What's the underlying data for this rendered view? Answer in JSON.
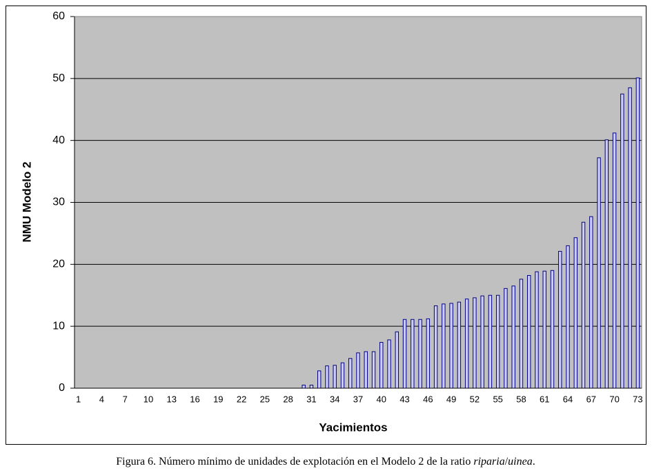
{
  "chart_data": {
    "type": "bar",
    "x_label": "Yacimientos",
    "y_label": "NMU Modelo 2",
    "categories": [
      "1",
      null,
      null,
      "4",
      null,
      null,
      "7",
      null,
      null,
      "10",
      null,
      null,
      "13",
      null,
      null,
      "16",
      null,
      null,
      "19",
      null,
      null,
      "22",
      null,
      null,
      "25",
      null,
      null,
      "28",
      null,
      null,
      "31",
      null,
      null,
      "34",
      null,
      null,
      "37",
      null,
      null,
      "40",
      null,
      null,
      "43",
      null,
      null,
      "46",
      null,
      null,
      "49",
      null,
      null,
      "52",
      null,
      null,
      "55",
      null,
      null,
      "58",
      null,
      null,
      "61",
      null,
      null,
      "64",
      null,
      null,
      "67",
      null,
      null,
      "70",
      null,
      null,
      "73"
    ],
    "values": [
      0,
      0,
      0,
      0,
      0,
      0,
      0,
      0,
      0,
      0,
      0,
      0,
      0,
      0,
      0,
      0,
      0,
      0,
      0,
      0,
      0,
      0,
      0,
      0,
      0,
      0,
      0,
      0,
      0,
      0.5,
      0.5,
      2.8,
      3.6,
      3.7,
      4.1,
      4.8,
      5.7,
      5.9,
      5.9,
      7.4,
      7.8,
      9.1,
      11.1,
      11.1,
      11.1,
      11.2,
      13.3,
      13.6,
      13.7,
      13.9,
      14.4,
      14.6,
      14.9,
      15.0,
      15.0,
      16.1,
      16.5,
      17.6,
      18.2,
      18.8,
      18.9,
      19.0,
      22.1,
      23.0,
      24.3,
      26.8,
      27.7,
      37.2,
      40.1,
      41.2,
      47.5,
      48.5,
      50.1
    ],
    "color": "#ccccff",
    "edge_color": "#000080",
    "background": "#c0c0c0",
    "ylim": [
      0,
      60
    ],
    "yticks": [
      0,
      10,
      20,
      30,
      40,
      50,
      60
    ],
    "grid": true
  },
  "caption": [
    {
      "text": "Figura 6. Número mínimo de unidades de explotación en el Modelo 2 de la ratio ",
      "italic": false
    },
    {
      "text": "riparia",
      "italic": true
    },
    {
      "text": "/",
      "italic": false
    },
    {
      "text": "uinea",
      "italic": true
    },
    {
      "text": ".",
      "italic": false
    }
  ]
}
